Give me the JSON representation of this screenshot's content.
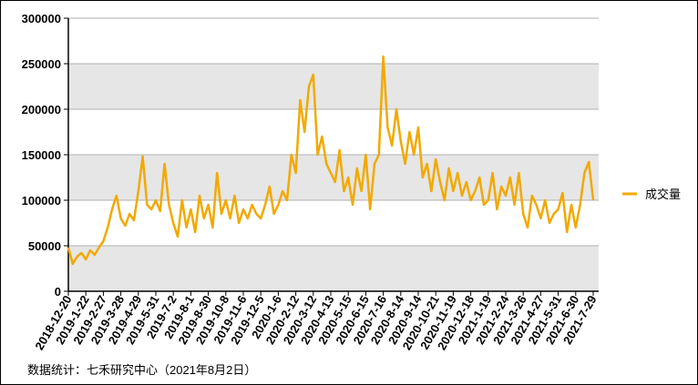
{
  "chart_data": {
    "type": "line",
    "source": "数据统计：七禾研究中心（2021年8月2日）",
    "categories": [
      "2018-12-20",
      null,
      null,
      null,
      "2019-1-22",
      null,
      null,
      null,
      "2019-2-27",
      null,
      null,
      null,
      "2019-3-28",
      null,
      null,
      null,
      "2019-4-29",
      null,
      null,
      null,
      "2019-5-31",
      null,
      null,
      null,
      "2019-7-2",
      null,
      null,
      null,
      "2019-8-1",
      null,
      null,
      null,
      "2019-8-30",
      null,
      null,
      null,
      "2019-10-8",
      null,
      null,
      null,
      "2019-11-6",
      null,
      null,
      null,
      "2019-12-5",
      null,
      null,
      null,
      "2020-1-6",
      null,
      null,
      null,
      "2020-2-12",
      null,
      null,
      null,
      "2020-3-12",
      null,
      null,
      null,
      "2020-4-13",
      null,
      null,
      null,
      "2020-5-15",
      null,
      null,
      null,
      "2020-6-15",
      null,
      null,
      null,
      "2020-7-16",
      null,
      null,
      null,
      "2020-8-14",
      null,
      null,
      null,
      "2020-9-14",
      null,
      null,
      null,
      "2020-10-21",
      null,
      null,
      null,
      "2020-11-19",
      null,
      null,
      null,
      "2020-12-18",
      null,
      null,
      null,
      "2021-1-19",
      null,
      null,
      null,
      "2021-2-24",
      null,
      null,
      null,
      "2021-3-26",
      null,
      null,
      null,
      "2021-4-27",
      null,
      null,
      null,
      "2021-5-31",
      null,
      null,
      null,
      "2021-6-30",
      null,
      null,
      null,
      "2021-7-29"
    ],
    "series": [
      {
        "name": "成交量",
        "color": "#f2a900",
        "values": [
          48000,
          30000,
          38000,
          42000,
          35000,
          45000,
          40000,
          48000,
          55000,
          70000,
          90000,
          105000,
          80000,
          72000,
          85000,
          78000,
          110000,
          148000,
          95000,
          90000,
          100000,
          88000,
          140000,
          95000,
          75000,
          60000,
          100000,
          70000,
          90000,
          65000,
          105000,
          80000,
          95000,
          70000,
          130000,
          85000,
          100000,
          80000,
          105000,
          75000,
          90000,
          80000,
          95000,
          85000,
          80000,
          95000,
          115000,
          85000,
          95000,
          110000,
          100000,
          150000,
          130000,
          210000,
          175000,
          225000,
          238000,
          150000,
          170000,
          140000,
          130000,
          120000,
          155000,
          110000,
          125000,
          95000,
          135000,
          110000,
          150000,
          90000,
          140000,
          150000,
          258000,
          180000,
          160000,
          200000,
          165000,
          140000,
          175000,
          150000,
          180000,
          125000,
          140000,
          110000,
          145000,
          120000,
          100000,
          135000,
          110000,
          130000,
          105000,
          120000,
          100000,
          110000,
          125000,
          95000,
          100000,
          130000,
          90000,
          115000,
          105000,
          125000,
          95000,
          130000,
          85000,
          70000,
          105000,
          95000,
          80000,
          100000,
          75000,
          85000,
          90000,
          108000,
          65000,
          95000,
          70000,
          95000,
          130000,
          142000,
          100000
        ]
      }
    ],
    "ylim": [
      0,
      300000
    ],
    "yticks": [
      0,
      50000,
      100000,
      150000,
      200000,
      250000,
      300000
    ],
    "grid": true,
    "legend": "right"
  }
}
